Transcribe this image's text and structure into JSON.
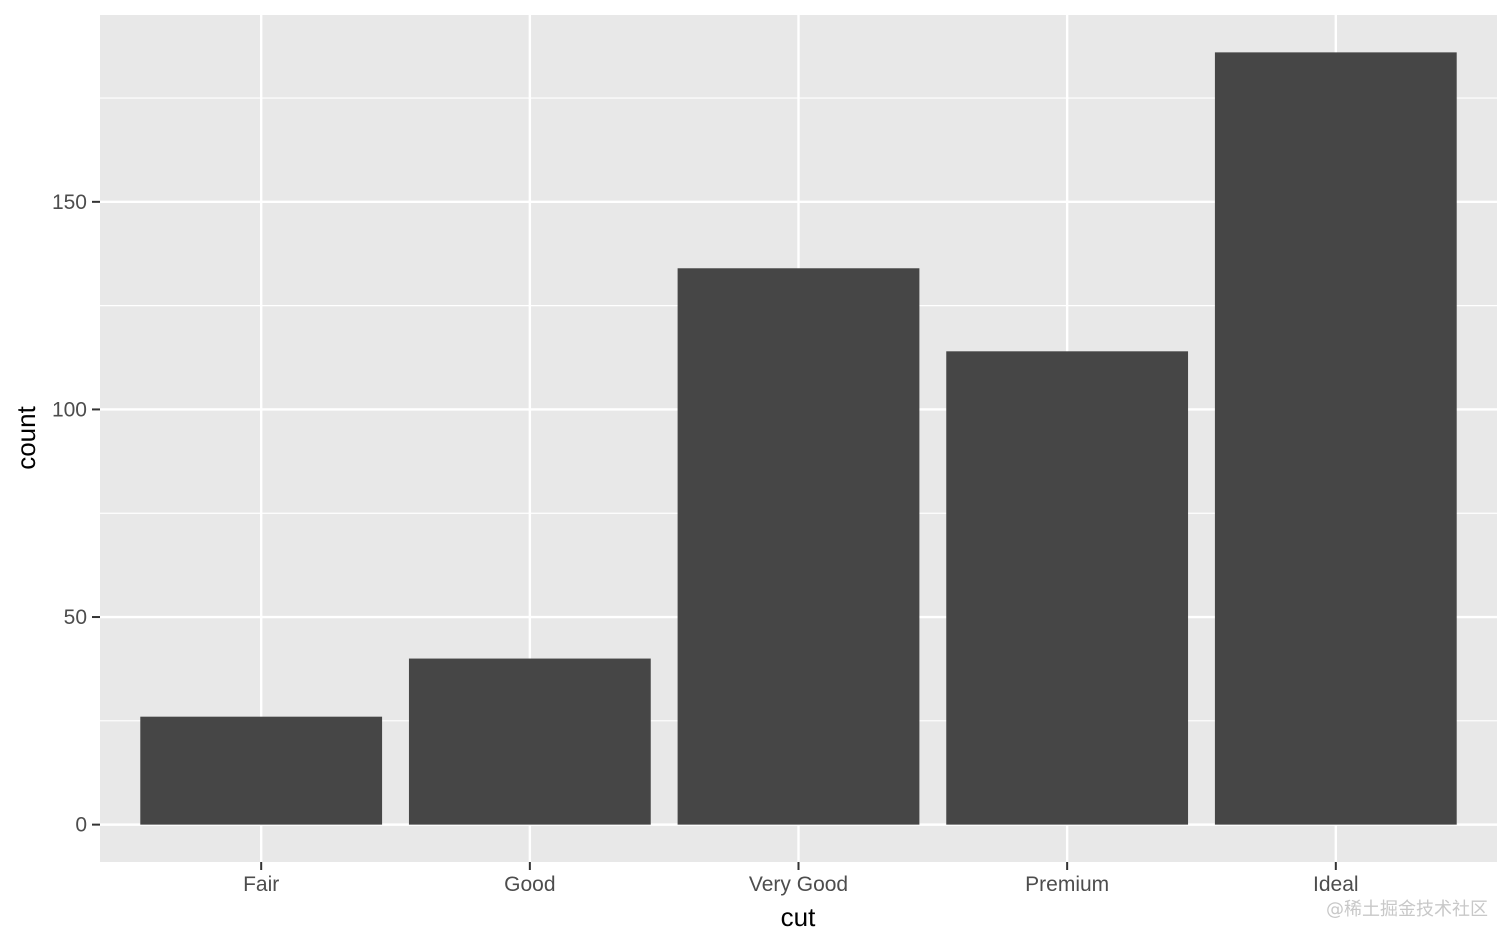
{
  "chart_data": {
    "type": "bar",
    "categories": [
      "Fair",
      "Good",
      "Very Good",
      "Premium",
      "Ideal"
    ],
    "values": [
      26,
      40,
      134,
      114,
      186
    ],
    "xlabel": "cut",
    "ylabel": "count",
    "ylim": [
      -9,
      195
    ],
    "yticks": [
      0,
      50,
      100,
      150
    ],
    "grid": true,
    "legend": "none"
  },
  "colors": {
    "panel_background": "#e8e8e8",
    "grid_major": "#ffffff",
    "bar_fill": "#464646",
    "tick_mark": "#333333"
  },
  "watermark": "@稀土掘金技术社区"
}
